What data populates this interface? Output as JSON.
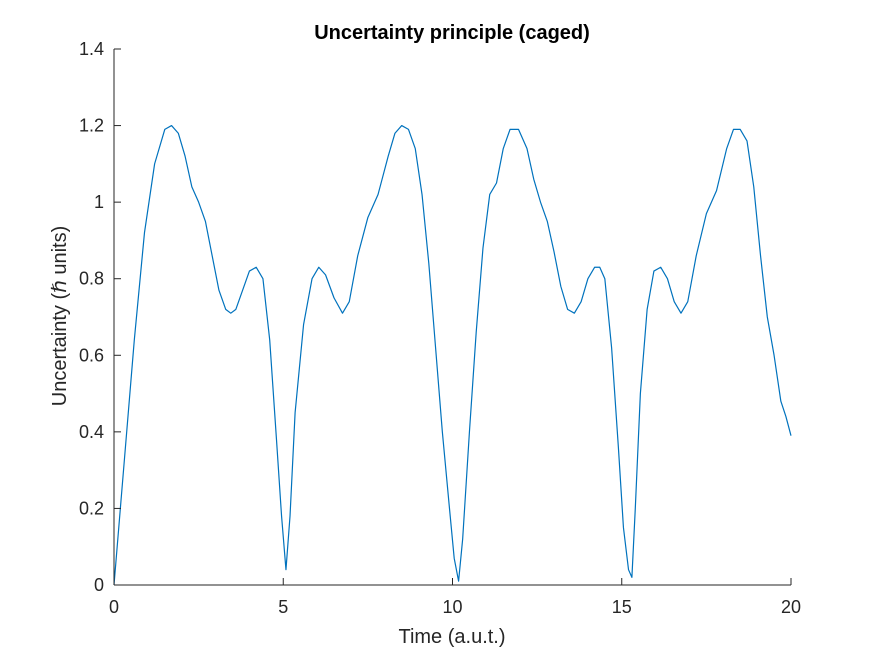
{
  "colors": {
    "background": "#ffffff",
    "axes": "#262626",
    "line": "#0072bd"
  },
  "chart_data": {
    "type": "line",
    "title": "Uncertainty principle (caged)",
    "xlabel": "Time (a.u.t.)",
    "ylabel": "Uncertainty (ℏ units)",
    "xlim": [
      0,
      20
    ],
    "ylim": [
      0,
      1.4
    ],
    "x_ticks": [
      0,
      5,
      10,
      15,
      20
    ],
    "x_tick_labels": [
      "0",
      "5",
      "10",
      "15",
      "20"
    ],
    "y_ticks": [
      0,
      0.2,
      0.4,
      0.6,
      0.8,
      1.0,
      1.2,
      1.4
    ],
    "y_tick_labels": [
      "0",
      "0.2",
      "0.4",
      "0.6",
      "0.8",
      "1",
      "1.2",
      "1.4"
    ],
    "grid": false,
    "legend": "none",
    "series": [
      {
        "color": "#0072bd",
        "x": [
          0,
          0.3,
          0.6,
          0.9,
          1.2,
          1.5,
          1.7,
          1.9,
          2.1,
          2.3,
          2.5,
          2.7,
          2.9,
          3.1,
          3.3,
          3.45,
          3.6,
          3.8,
          4.0,
          4.2,
          4.4,
          4.6,
          4.8,
          4.95,
          5.08,
          5.2,
          5.35,
          5.6,
          5.85,
          6.05,
          6.25,
          6.5,
          6.75,
          6.95,
          7.2,
          7.5,
          7.8,
          8.1,
          8.3,
          8.5,
          8.7,
          8.9,
          9.1,
          9.3,
          9.5,
          9.7,
          9.9,
          10.05,
          10.18,
          10.3,
          10.5,
          10.7,
          10.9,
          11.1,
          11.3,
          11.5,
          11.7,
          11.95,
          12.2,
          12.4,
          12.6,
          12.8,
          13.0,
          13.2,
          13.4,
          13.6,
          13.8,
          14.0,
          14.2,
          14.35,
          14.5,
          14.7,
          14.9,
          15.05,
          15.2,
          15.3,
          15.4,
          15.55,
          15.75,
          15.95,
          16.15,
          16.35,
          16.55,
          16.75,
          16.95,
          17.2,
          17.5,
          17.8,
          18.1,
          18.3,
          18.5,
          18.7,
          18.9,
          19.1,
          19.3,
          19.5,
          19.7,
          19.85,
          20.0
        ],
        "y": [
          0.0,
          0.32,
          0.64,
          0.92,
          1.1,
          1.19,
          1.2,
          1.18,
          1.12,
          1.04,
          1.0,
          0.95,
          0.86,
          0.77,
          0.72,
          0.71,
          0.72,
          0.77,
          0.82,
          0.83,
          0.8,
          0.64,
          0.38,
          0.18,
          0.04,
          0.18,
          0.45,
          0.68,
          0.8,
          0.83,
          0.81,
          0.75,
          0.71,
          0.74,
          0.86,
          0.96,
          1.02,
          1.12,
          1.18,
          1.2,
          1.19,
          1.14,
          1.02,
          0.84,
          0.62,
          0.4,
          0.21,
          0.07,
          0.01,
          0.12,
          0.4,
          0.66,
          0.88,
          1.02,
          1.05,
          1.14,
          1.19,
          1.19,
          1.14,
          1.06,
          1.0,
          0.95,
          0.87,
          0.78,
          0.72,
          0.71,
          0.74,
          0.8,
          0.83,
          0.83,
          0.8,
          0.62,
          0.36,
          0.15,
          0.04,
          0.02,
          0.2,
          0.5,
          0.72,
          0.82,
          0.83,
          0.8,
          0.74,
          0.71,
          0.74,
          0.86,
          0.97,
          1.03,
          1.14,
          1.19,
          1.19,
          1.16,
          1.04,
          0.86,
          0.7,
          0.6,
          0.48,
          0.44,
          0.39
        ]
      }
    ]
  }
}
